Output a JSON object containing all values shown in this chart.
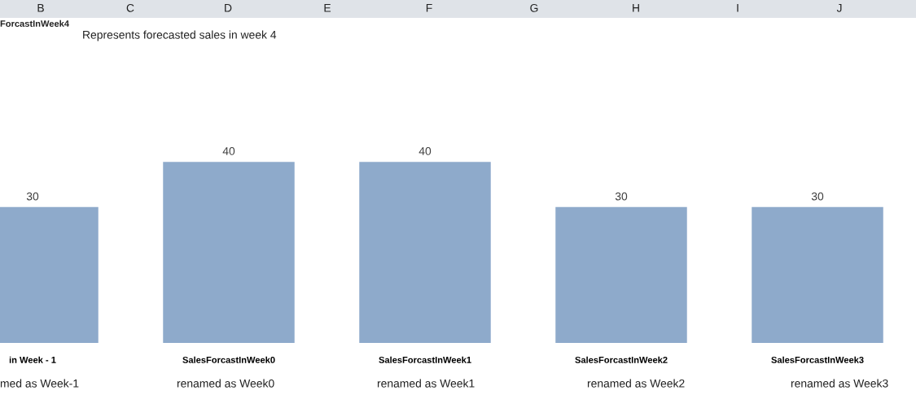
{
  "chart_data": {
    "type": "bar",
    "categories": [
      "in Week - 1",
      "SalesForcastInWeek0",
      "SalesForcastInWeek1",
      "SalesForcastInWeek2",
      "SalesForcastInWeek3"
    ],
    "values": [
      30,
      40,
      40,
      30,
      30
    ],
    "color": "#8eaacb",
    "tick_labels": "x",
    "data_labels": true,
    "grid": false,
    "annotations": [
      "B",
      "C",
      "D",
      "E",
      "F",
      "G",
      "H",
      "I",
      "J",
      "ForcastInWeek4",
      "Represents forecasted sales in week 4",
      "med as Week-1",
      "renamed as Week0",
      "renamed as Week1",
      "renamed as Week2",
      "renamed as Week3"
    ]
  }
}
